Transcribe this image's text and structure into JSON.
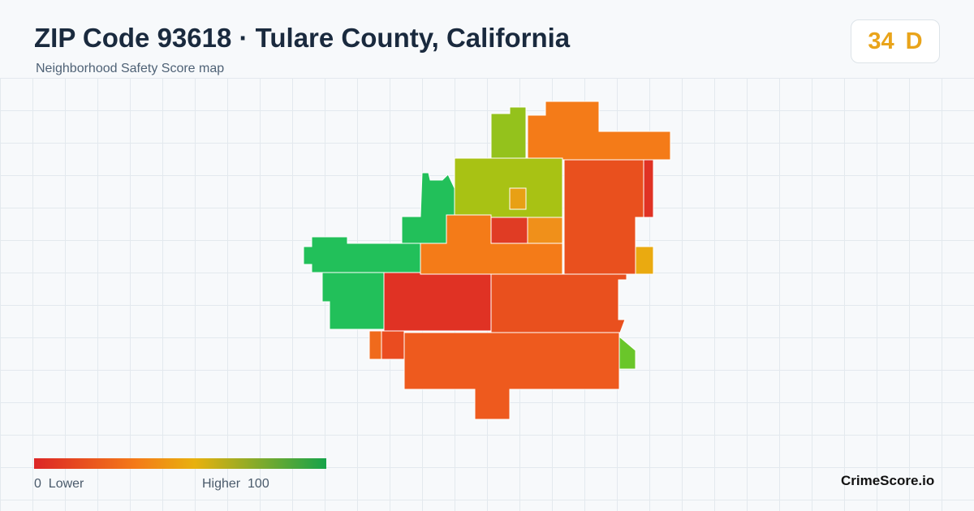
{
  "header": {
    "title": "ZIP Code 93618 · Tulare County, California",
    "subtitle": "Neighborhood Safety Score map"
  },
  "score": {
    "value": 34,
    "grade": "D"
  },
  "legend": {
    "min": 0,
    "min_label": "Lower",
    "max_label": "Higher",
    "max": 100
  },
  "brand": "CrimeScore.io"
}
